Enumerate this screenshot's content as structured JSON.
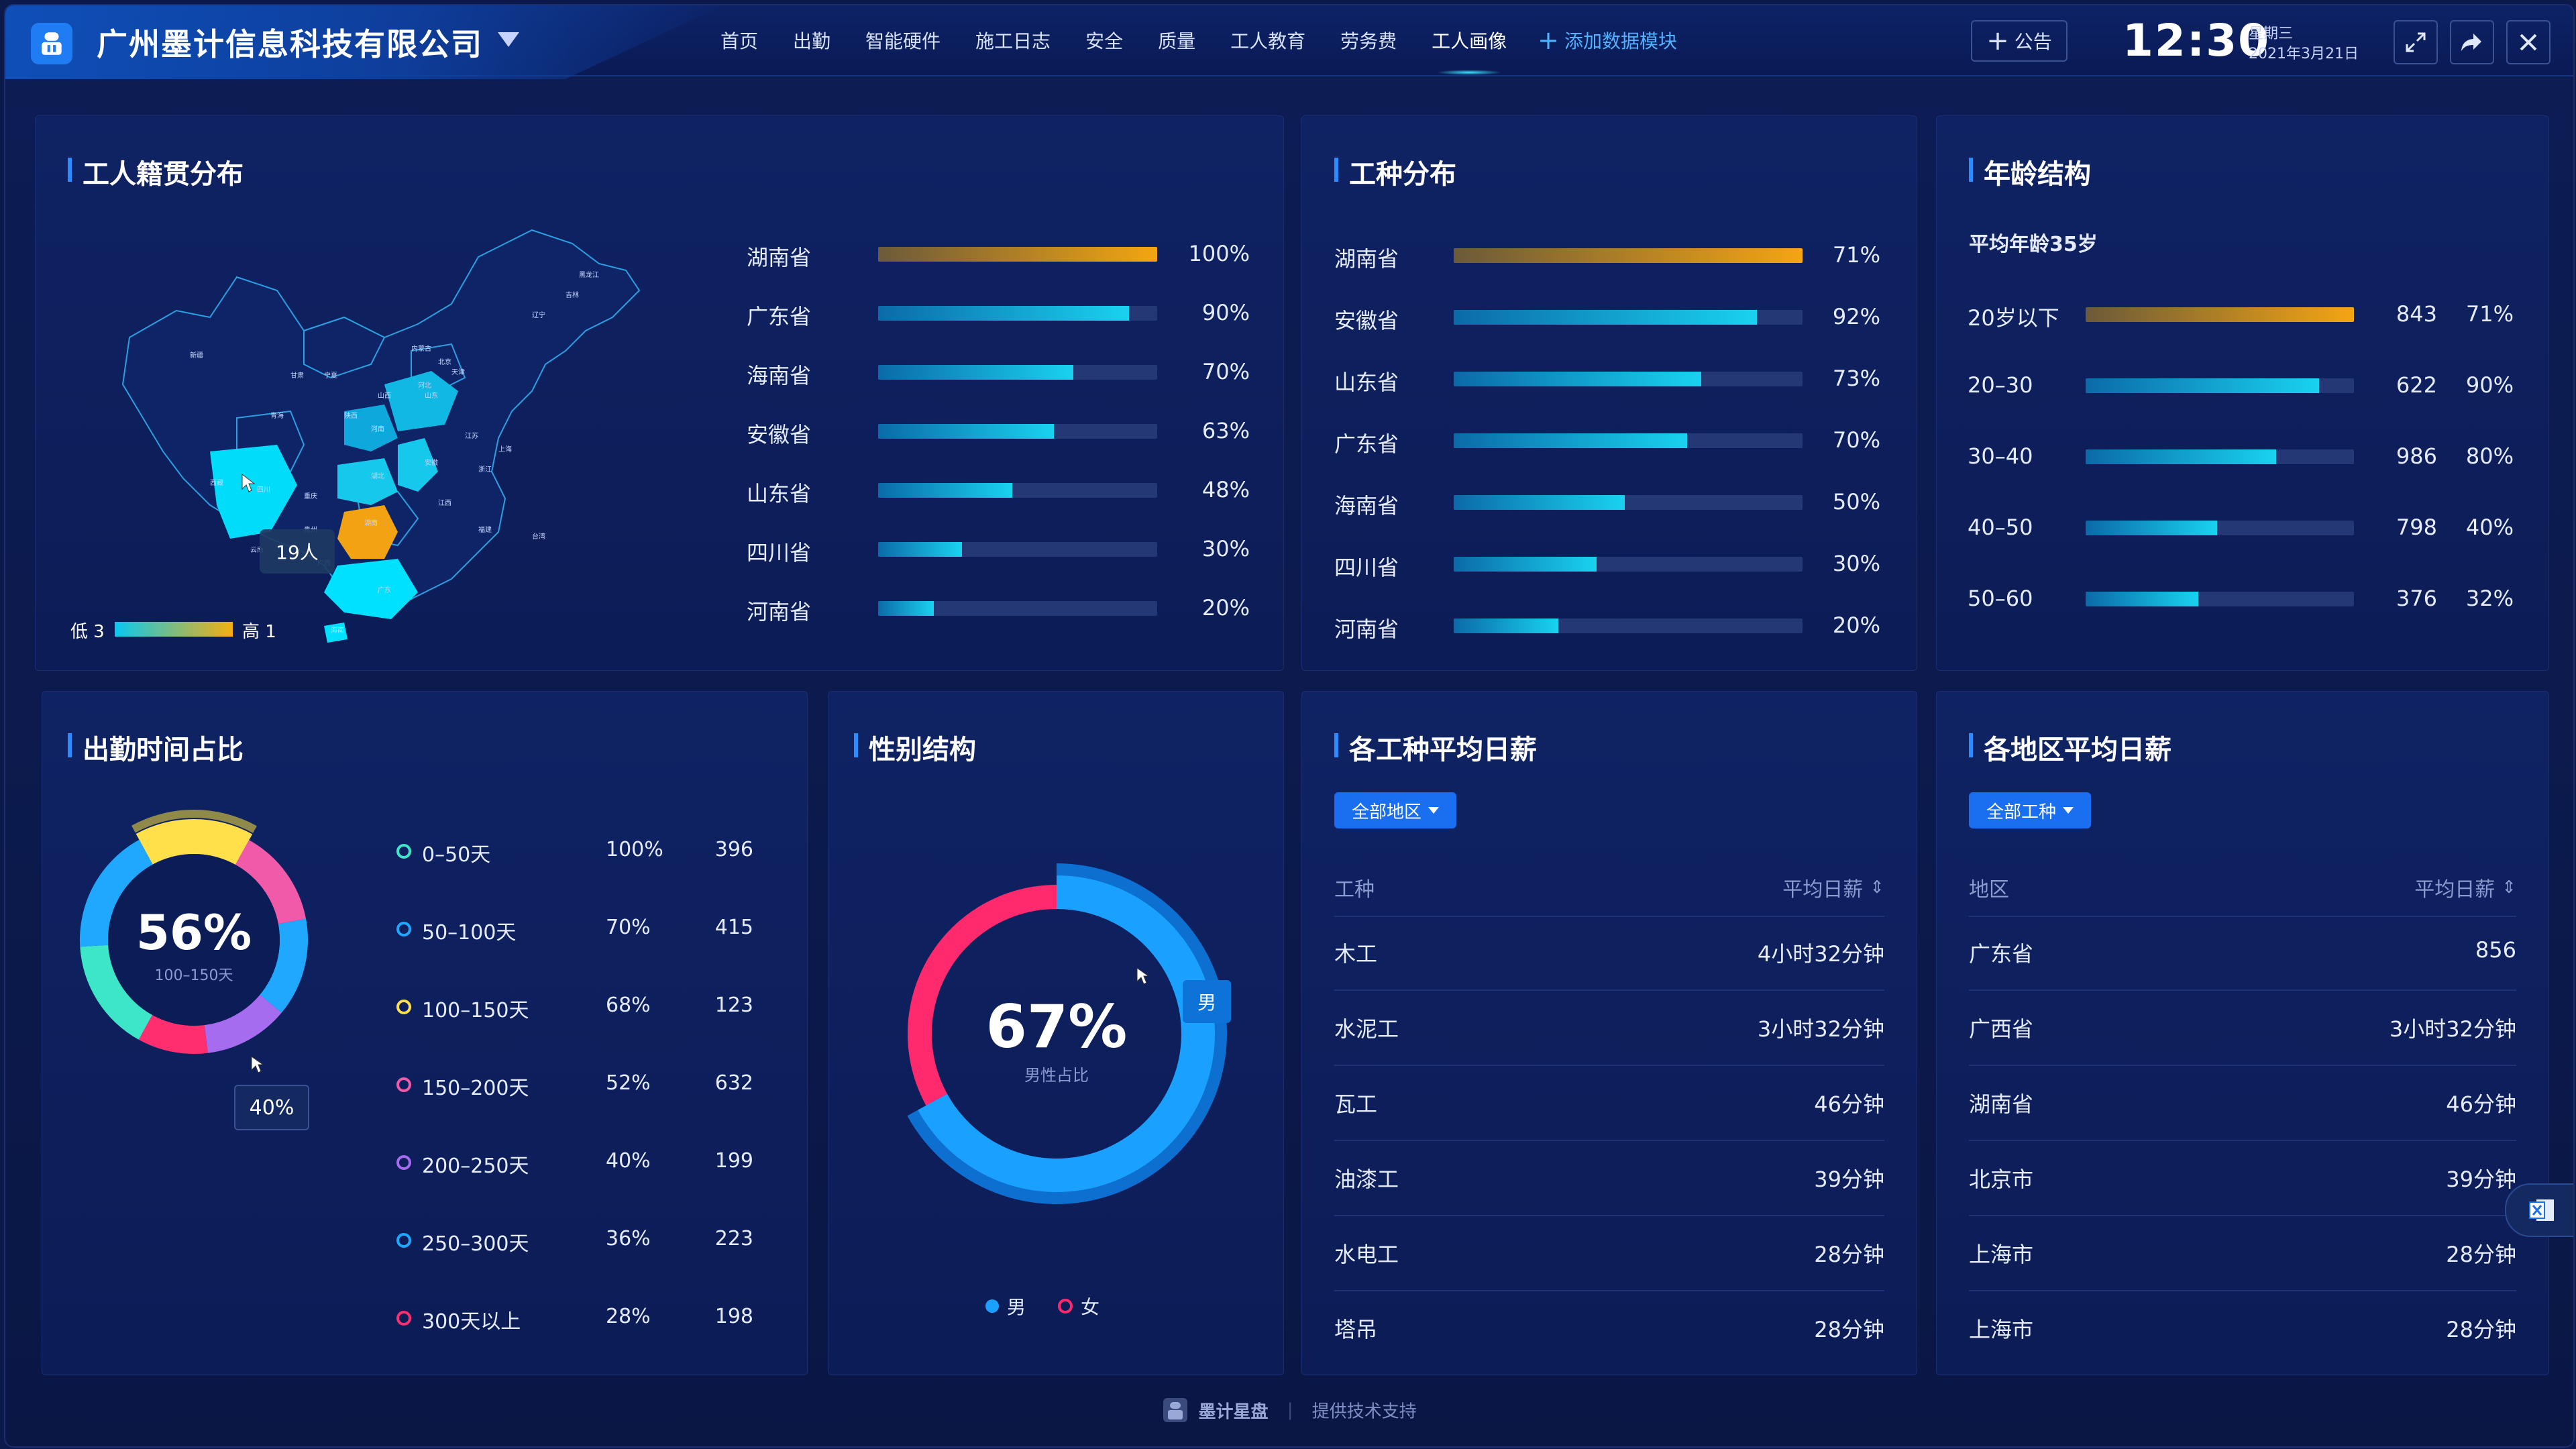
{
  "header": {
    "company": "广州墨计信息科技有限公司",
    "nav": [
      "首页",
      "出勤",
      "智能硬件",
      "施工日志",
      "安全",
      "质量",
      "工人教育",
      "劳务费",
      "工人画像"
    ],
    "active_nav": "工人画像",
    "add_module": "添加数据模块",
    "notice_label": "公告",
    "time": "12:30",
    "weekday": "星期三",
    "date": "2021年3月21日"
  },
  "origin": {
    "title": "工人籍贯分布",
    "legend_low": "低 3",
    "legend_high": "高 1",
    "tooltip": "19人",
    "provinces": [
      {
        "name": "湖南省",
        "pct": "100%",
        "value": 100
      },
      {
        "name": "广东省",
        "pct": "90%",
        "value": 90
      },
      {
        "name": "海南省",
        "pct": "70%",
        "value": 70
      },
      {
        "name": "安徽省",
        "pct": "63%",
        "value": 63
      },
      {
        "name": "山东省",
        "pct": "48%",
        "value": 48
      },
      {
        "name": "四川省",
        "pct": "30%",
        "value": 30
      },
      {
        "name": "河南省",
        "pct": "20%",
        "value": 20
      }
    ],
    "map_labels": [
      "黑龙江",
      "吉林",
      "辽宁",
      "内蒙古",
      "北京",
      "天津",
      "河北",
      "山西",
      "陕西",
      "宁夏",
      "甘肃",
      "青海",
      "新疆",
      "西藏",
      "四川",
      "重庆",
      "湖北",
      "河南",
      "山东",
      "江苏",
      "安徽",
      "浙江",
      "上海",
      "江西",
      "湖南",
      "福建",
      "台湾",
      "广东",
      "广西",
      "贵州",
      "云南",
      "海南"
    ]
  },
  "trade": {
    "title": "工种分布",
    "rows": [
      {
        "name": "湖南省",
        "pct": "71%",
        "value": 100
      },
      {
        "name": "安徽省",
        "pct": "92%",
        "value": 87
      },
      {
        "name": "山东省",
        "pct": "73%",
        "value": 71
      },
      {
        "name": "广东省",
        "pct": "70%",
        "value": 67
      },
      {
        "name": "海南省",
        "pct": "50%",
        "value": 49
      },
      {
        "name": "四川省",
        "pct": "30%",
        "value": 41
      },
      {
        "name": "河南省",
        "pct": "20%",
        "value": 30
      }
    ]
  },
  "age": {
    "title": "年龄结构",
    "average": "平均年龄35岁",
    "rows": [
      {
        "name": "20岁以下",
        "count": "843",
        "pct": "71%",
        "value": 100
      },
      {
        "name": "20–30",
        "count": "622",
        "pct": "90%",
        "value": 87
      },
      {
        "name": "30–40",
        "count": "986",
        "pct": "80%",
        "value": 71
      },
      {
        "name": "40–50",
        "count": "798",
        "pct": "40%",
        "value": 49
      },
      {
        "name": "50–60",
        "count": "376",
        "pct": "32%",
        "value": 42
      }
    ]
  },
  "attendance": {
    "title": "出勤时间占比",
    "center_value": "56%",
    "center_label": "100–150天",
    "tooltip": "40%",
    "rows": [
      {
        "name": "0–50天",
        "pct": "100%",
        "count": "396",
        "color": "#3ee6c8"
      },
      {
        "name": "50–100天",
        "pct": "70%",
        "count": "415",
        "color": "#20a8ff"
      },
      {
        "name": "100–150天",
        "pct": "68%",
        "count": "123",
        "color": "#ffe04a"
      },
      {
        "name": "150–200天",
        "pct": "52%",
        "count": "632",
        "color": "#f05aa8"
      },
      {
        "name": "200–250天",
        "pct": "40%",
        "count": "199",
        "color": "#a66cf0"
      },
      {
        "name": "250–300天",
        "pct": "36%",
        "count": "223",
        "color": "#20a8ff"
      },
      {
        "name": "300天以上",
        "pct": "28%",
        "count": "198",
        "color": "#ff2e6e"
      }
    ]
  },
  "gender": {
    "title": "性别结构",
    "center_value": "67%",
    "center_label": "男性占比",
    "tooltip": "男",
    "legend": [
      {
        "name": "男",
        "color": "#1aa0ff"
      },
      {
        "name": "女",
        "color": "#ff2a6d"
      }
    ],
    "male_fraction": 0.67
  },
  "trade_wage": {
    "title": "各工种平均日薪",
    "filter": "全部地区",
    "col1": "工种",
    "col2": "平均日薪",
    "rows": [
      {
        "name": "木工",
        "value": "4小时32分钟"
      },
      {
        "name": "水泥工",
        "value": "3小时32分钟"
      },
      {
        "name": "瓦工",
        "value": "46分钟"
      },
      {
        "name": "油漆工",
        "value": "39分钟"
      },
      {
        "name": "水电工",
        "value": "28分钟"
      },
      {
        "name": "塔吊",
        "value": "28分钟"
      }
    ]
  },
  "region_wage": {
    "title": "各地区平均日薪",
    "filter": "全部工种",
    "col1": "地区",
    "col2": "平均日薪",
    "rows": [
      {
        "name": "广东省",
        "value": "856"
      },
      {
        "name": "广西省",
        "value": "3小时32分钟"
      },
      {
        "name": "湖南省",
        "value": "46分钟"
      },
      {
        "name": "北京市",
        "value": "39分钟"
      },
      {
        "name": "上海市",
        "value": "28分钟"
      },
      {
        "name": "上海市",
        "value": "28分钟"
      }
    ]
  },
  "footer": {
    "brand": "墨计星盘",
    "text": "提供技术支持"
  }
}
